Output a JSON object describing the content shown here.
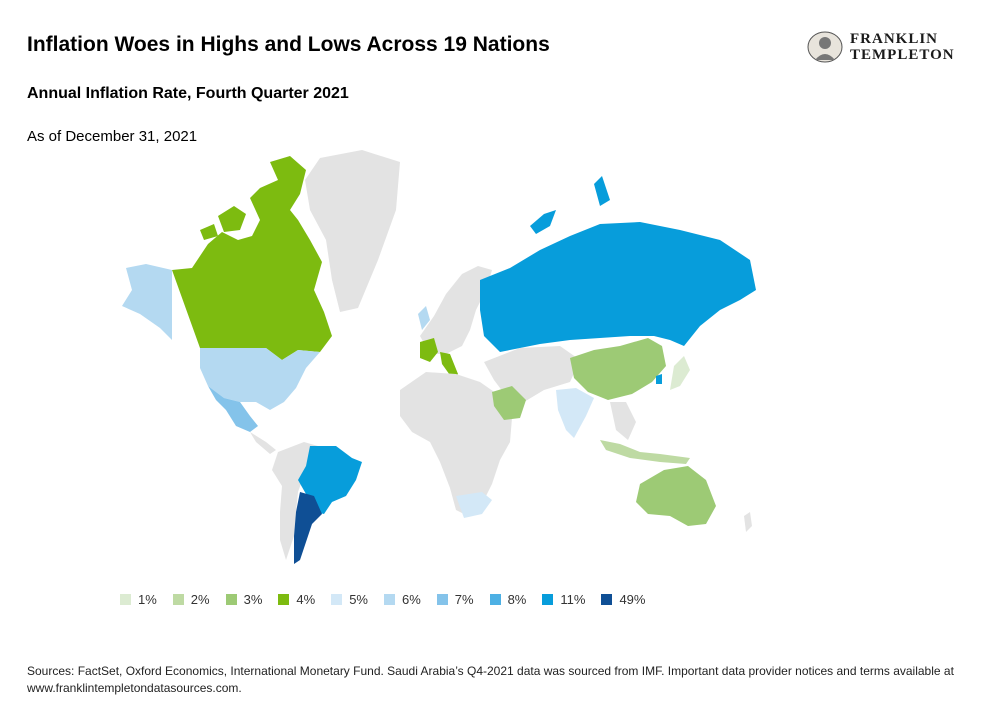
{
  "header": {
    "title": "Inflation Woes in Highs and Lows Across 19 Nations",
    "subtitle": "Annual Inflation Rate, Fourth Quarter 2021",
    "as_of": "As of December 31, 2021"
  },
  "logo": {
    "line1": "FRANKLIN",
    "line2": "TEMPLETON"
  },
  "legend": [
    {
      "label": "1%",
      "color": "#dcebd2"
    },
    {
      "label": "2%",
      "color": "#bedaa3"
    },
    {
      "label": "3%",
      "color": "#9dca75"
    },
    {
      "label": "4%",
      "color": "#7dbb10"
    },
    {
      "label": "5%",
      "color": "#d3e8f7"
    },
    {
      "label": "6%",
      "color": "#b4d9f1"
    },
    {
      "label": "7%",
      "color": "#84c3ea"
    },
    {
      "label": "8%",
      "color": "#4db0e4"
    },
    {
      "label": "11%",
      "color": "#079ddb"
    },
    {
      "label": "49%",
      "color": "#0f4f95"
    }
  ],
  "colors": {
    "land": "#e3e3e3"
  },
  "sources": "Sources: FactSet, Oxford Economics, International Monetary Fund. Saudi Arabia’s Q4-2021 data was sourced from IMF. Important data provider notices and terms available at www.franklintempletondatasources.com."
}
